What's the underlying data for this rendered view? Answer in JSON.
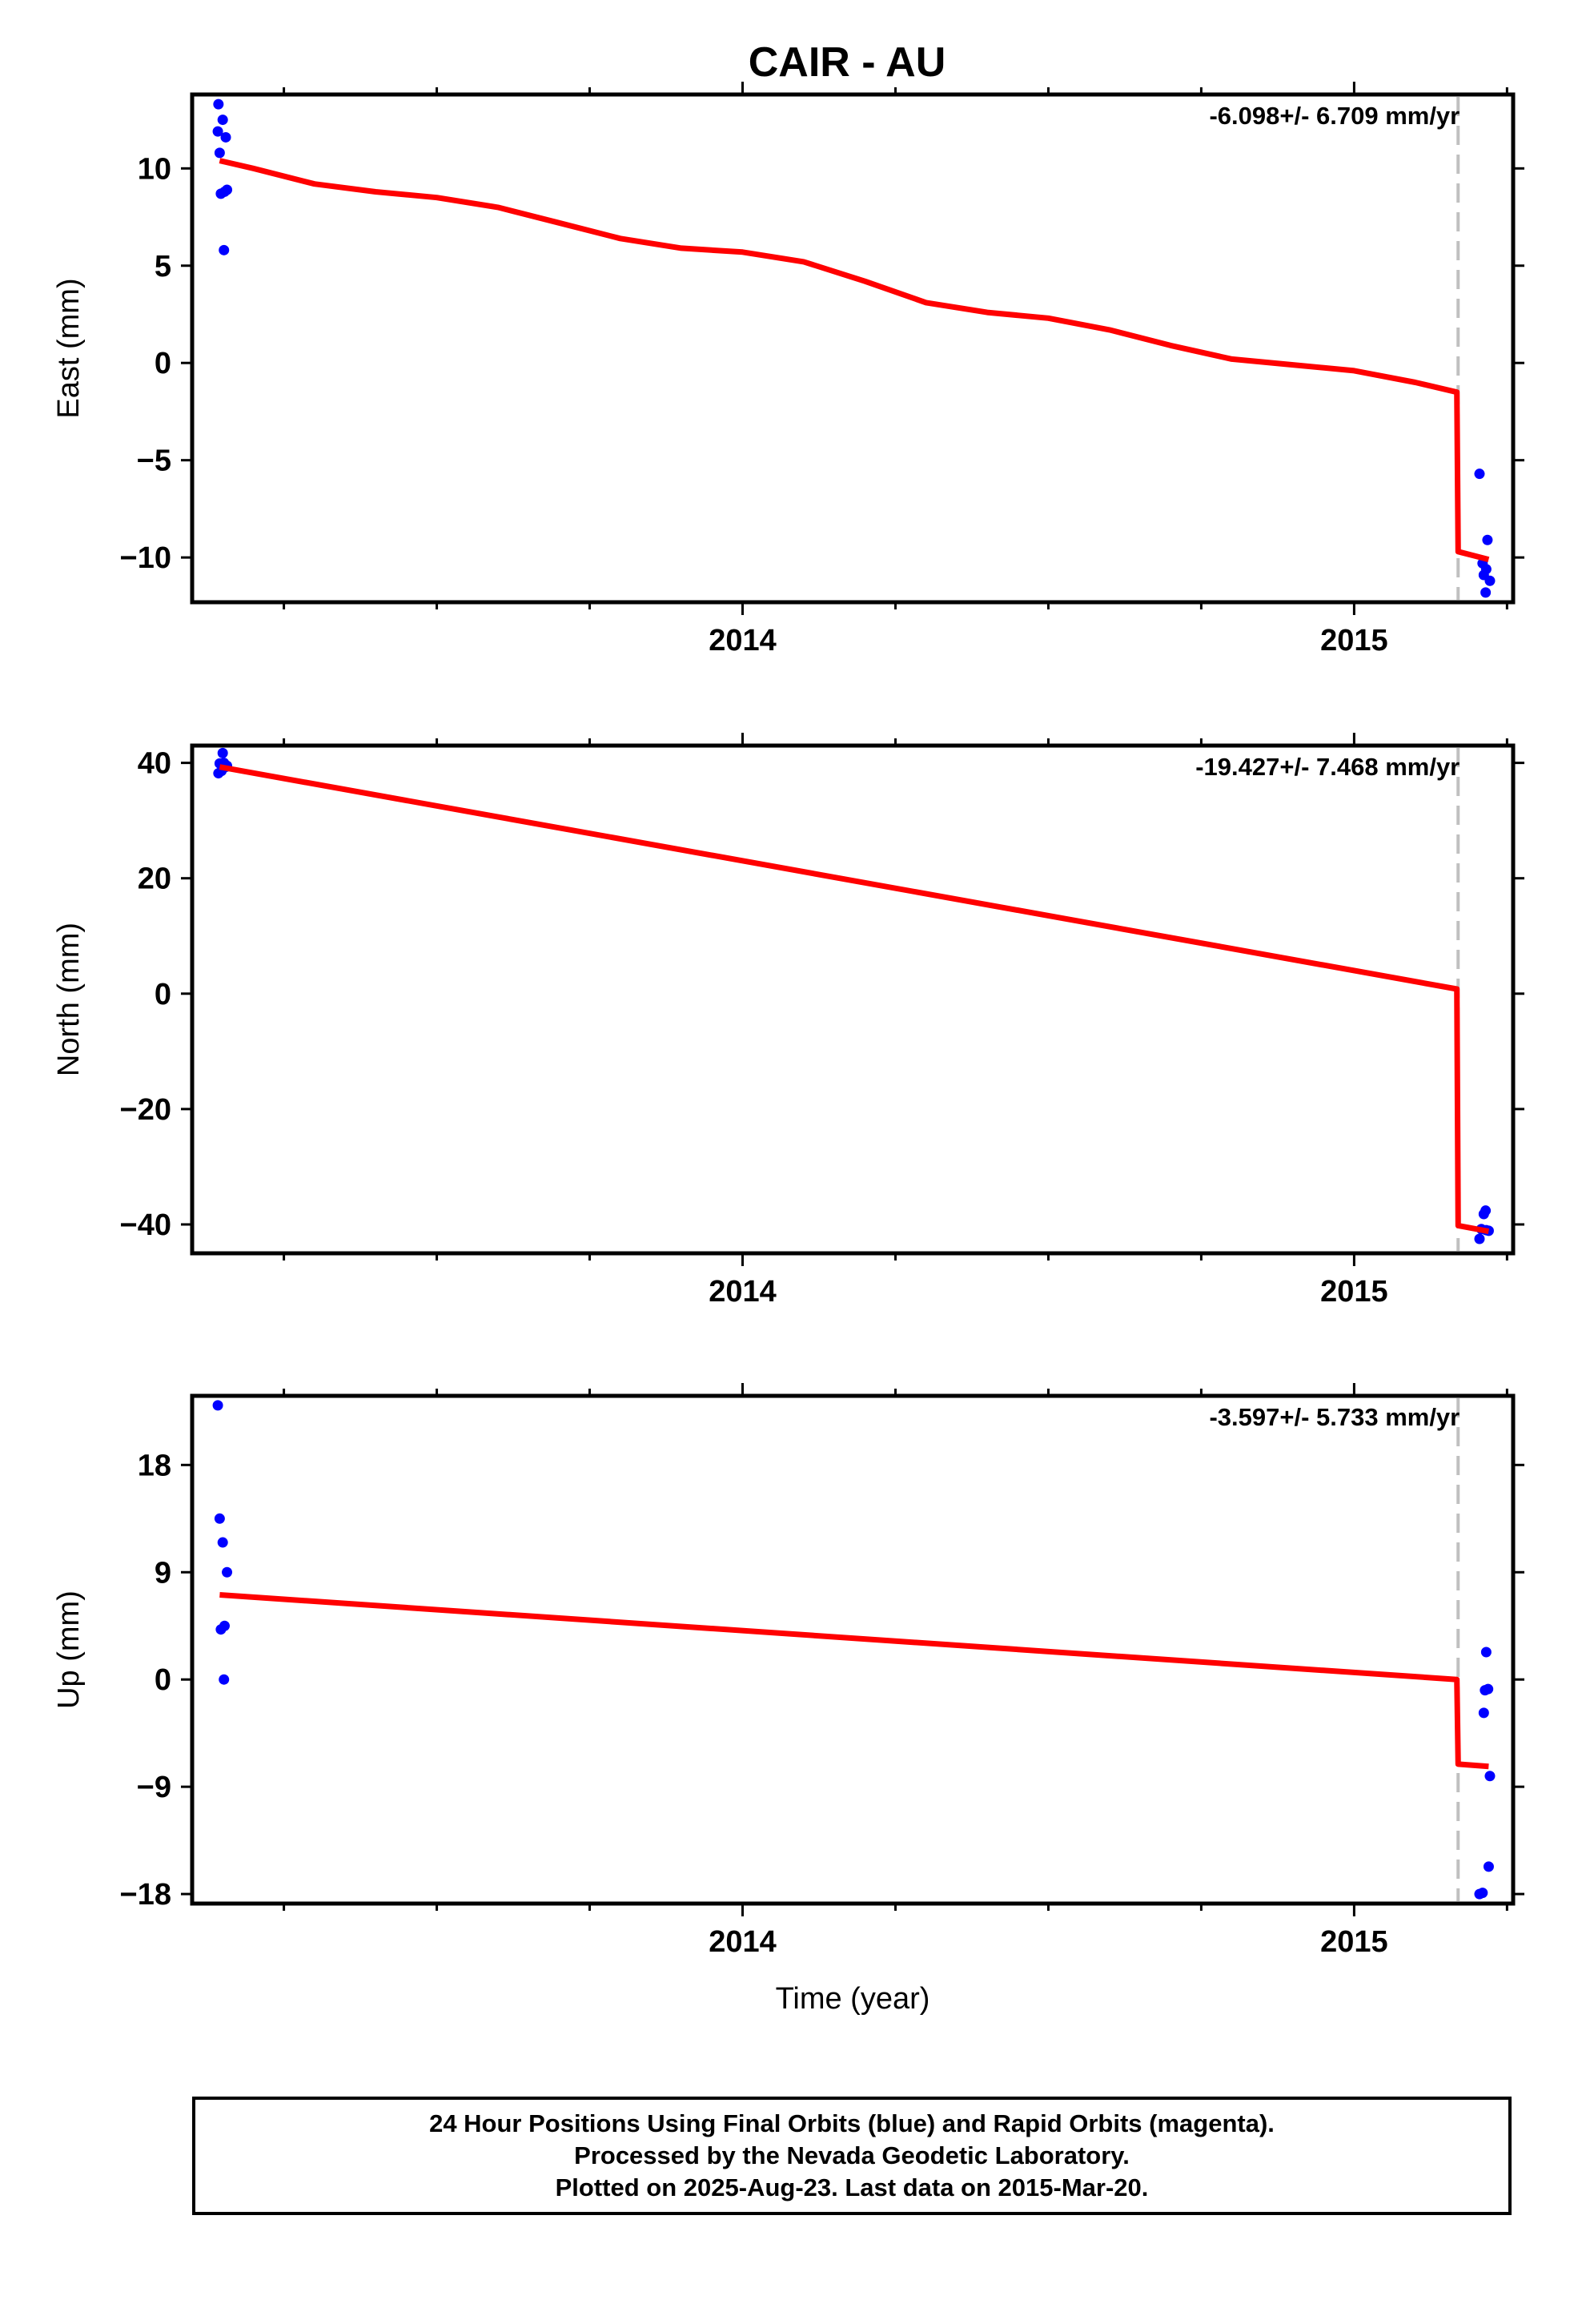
{
  "title": "CAIR - AU",
  "colors": {
    "data_points": "#0000ff",
    "model_line": "#ff0000",
    "offset_marker": "#c0c0c0",
    "axes": "#000000"
  },
  "chart_data": [
    {
      "type": "scatter",
      "panel": "east",
      "ylabel": "East (mm)",
      "rate_label": "-6.098+/- 6.709 mm/yr",
      "xlim": [
        2013.1,
        2015.26
      ],
      "ylim": [
        -12.3,
        13.8
      ],
      "yticks": [
        -10,
        -5,
        0,
        5,
        10
      ],
      "ytick_labels": [
        "−10",
        "−5",
        "0",
        "5",
        "10"
      ],
      "xticks": [
        2014,
        2015
      ],
      "xtick_labels": [
        "2014",
        "2015"
      ],
      "x_minor_ticks": [
        2013.25,
        2013.5,
        2013.75,
        2014.25,
        2014.5,
        2014.75,
        2015.25
      ],
      "offset_epoch": 2015.17,
      "series": [
        {
          "kind": "points",
          "x": [
            2013.142,
            2013.143,
            2013.145,
            2013.147,
            2013.15,
            2013.152,
            2013.155,
            2013.153,
            2013.157
          ],
          "y": [
            11.9,
            13.3,
            10.8,
            8.7,
            12.5,
            5.8,
            11.6,
            8.8,
            8.9
          ]
        },
        {
          "kind": "points",
          "x": [
            2015.205,
            2015.21,
            2015.212,
            2015.215,
            2015.216,
            2015.218,
            2015.222
          ],
          "y": [
            -5.7,
            -10.3,
            -10.9,
            -11.8,
            -10.6,
            -9.1,
            -11.2
          ]
        },
        {
          "kind": "line",
          "x": [
            2013.145,
            2013.2,
            2013.3,
            2013.4,
            2013.5,
            2013.6,
            2013.7,
            2013.8,
            2013.9,
            2014.0,
            2014.1,
            2014.2,
            2014.3,
            2014.4,
            2014.5,
            2014.6,
            2014.7,
            2014.8,
            2014.9,
            2015.0,
            2015.1,
            2015.168,
            2015.17,
            2015.22
          ],
          "y": [
            10.4,
            10.0,
            9.2,
            8.8,
            8.5,
            8.0,
            7.2,
            6.4,
            5.9,
            5.7,
            5.2,
            4.2,
            3.1,
            2.6,
            2.3,
            1.7,
            0.9,
            0.2,
            -0.1,
            -0.4,
            -1.0,
            -1.5,
            -9.7,
            -10.1
          ]
        }
      ]
    },
    {
      "type": "scatter",
      "panel": "north",
      "ylabel": "North (mm)",
      "rate_label": "-19.427+/- 7.468 mm/yr",
      "xlim": [
        2013.1,
        2015.26
      ],
      "ylim": [
        -45,
        43
      ],
      "yticks": [
        -40,
        -20,
        0,
        20,
        40
      ],
      "ytick_labels": [
        "−40",
        "−20",
        "0",
        "20",
        "40"
      ],
      "xticks": [
        2014,
        2015
      ],
      "xtick_labels": [
        "2014",
        "2015"
      ],
      "x_minor_ticks": [
        2013.25,
        2013.5,
        2013.75,
        2014.25,
        2014.5,
        2014.75,
        2015.25
      ],
      "offset_epoch": 2015.17,
      "series": [
        {
          "kind": "points",
          "x": [
            2013.143,
            2013.145,
            2013.148,
            2013.15,
            2013.152,
            2013.155,
            2013.157
          ],
          "y": [
            38.2,
            39.9,
            38.6,
            41.7,
            40.0,
            39.3,
            39.5
          ]
        },
        {
          "kind": "points",
          "x": [
            2015.205,
            2015.208,
            2015.212,
            2015.215,
            2015.216,
            2015.22
          ],
          "y": [
            -42.5,
            -40.8,
            -38.2,
            -37.6,
            -41.0,
            -41.1
          ]
        },
        {
          "kind": "line",
          "x": [
            2013.145,
            2015.168,
            2015.17,
            2015.22
          ],
          "y": [
            39.3,
            0.8,
            -40.2,
            -41.2
          ]
        }
      ]
    },
    {
      "type": "scatter",
      "panel": "up",
      "ylabel": "Up (mm)",
      "rate_label": "-3.597+/- 5.733 mm/yr",
      "xlabel": "Time (year)",
      "xlim": [
        2013.1,
        2015.26
      ],
      "ylim": [
        -18.8,
        23.8
      ],
      "yticks": [
        -18,
        -9,
        0,
        9,
        18
      ],
      "ytick_labels": [
        "−18",
        "−9",
        "0",
        "9",
        "18"
      ],
      "xticks": [
        2014,
        2015
      ],
      "xtick_labels": [
        "2014",
        "2015"
      ],
      "x_minor_ticks": [
        2013.25,
        2013.5,
        2013.75,
        2014.25,
        2014.5,
        2014.75,
        2015.25
      ],
      "offset_epoch": 2015.17,
      "series": [
        {
          "kind": "points",
          "x": [
            2013.142,
            2013.145,
            2013.147,
            2013.15,
            2013.152,
            2013.153,
            2013.157
          ],
          "y": [
            23.0,
            13.5,
            4.2,
            11.5,
            0.0,
            4.5,
            9.0
          ]
        },
        {
          "kind": "points",
          "x": [
            2015.205,
            2015.21,
            2015.212,
            2015.214,
            2015.216,
            2015.219,
            2015.222
          ],
          "y": [
            -18.0,
            -17.9,
            -2.8,
            -0.9,
            2.3,
            -0.8,
            -8.1
          ]
        },
        {
          "kind": "points",
          "x": [
            2015.22
          ],
          "y": [
            -15.7
          ]
        },
        {
          "kind": "line",
          "x": [
            2013.145,
            2015.168,
            2015.17,
            2015.22
          ],
          "y": [
            7.1,
            0.0,
            -7.1,
            -7.3
          ]
        }
      ]
    }
  ],
  "caption": {
    "line1": "24 Hour Positions Using Final Orbits (blue) and Rapid Orbits (magenta).",
    "line2": "Processed by the Nevada Geodetic Laboratory.",
    "line3": "Plotted on 2025-Aug-23. Last data on 2015-Mar-20."
  }
}
